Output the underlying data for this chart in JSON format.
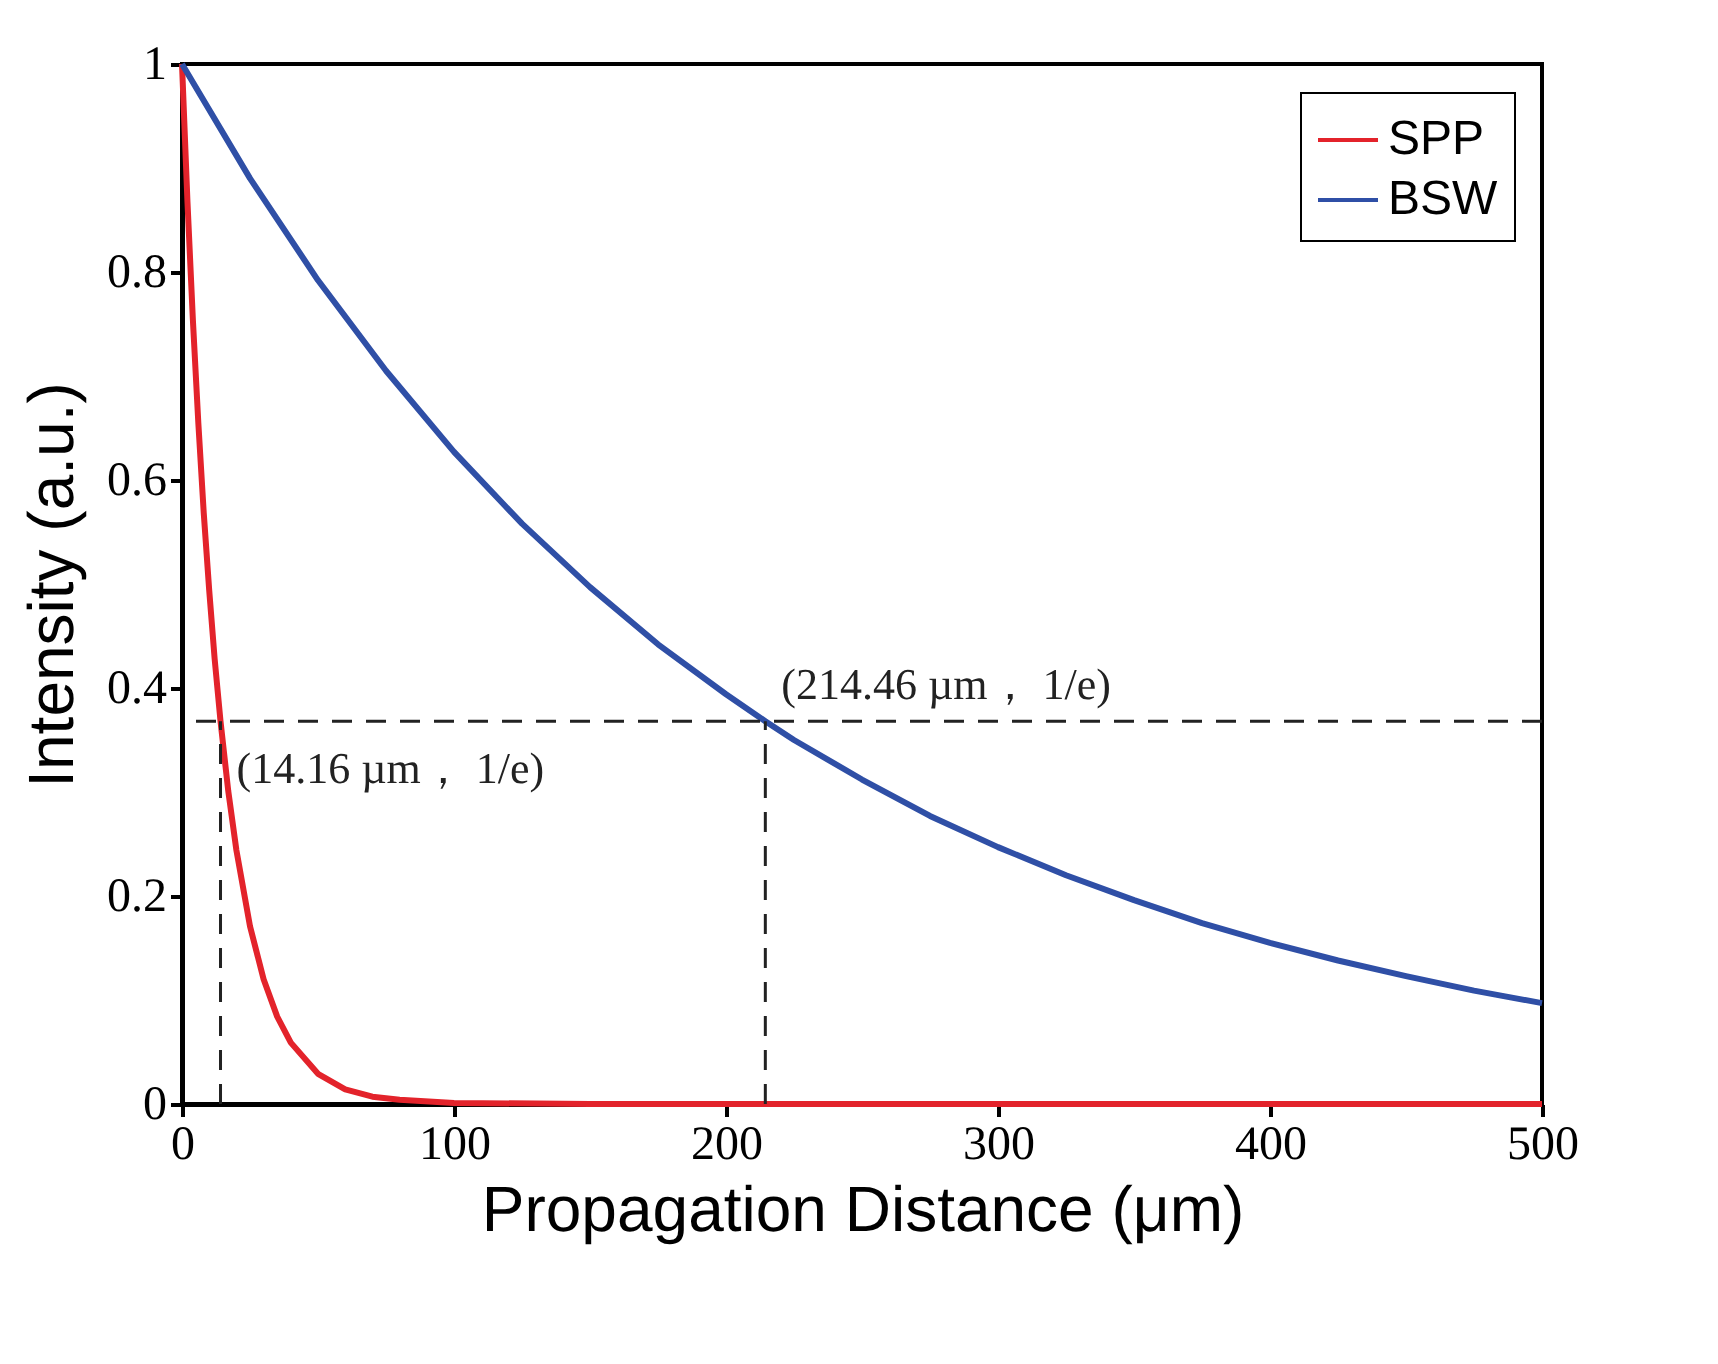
{
  "chart_data": {
    "type": "line",
    "xlabel": "Propagation Distance (μm)",
    "ylabel": "Intensity (a.u.)",
    "xlim": [
      0,
      500
    ],
    "xticks": [
      0,
      100,
      200,
      300,
      400,
      500
    ],
    "ylim": [
      0,
      1
    ],
    "yticks": [
      0,
      0.2,
      0.4,
      0.6,
      0.8,
      1
    ],
    "legend": "top right",
    "series": [
      {
        "name": "SPP",
        "color": "#e3232b",
        "x": [
          0,
          2,
          4,
          6,
          8,
          10,
          12,
          14.16,
          17,
          20,
          25,
          30,
          35,
          40,
          50,
          60,
          70,
          80,
          100,
          150,
          200,
          300,
          400,
          500
        ],
        "values": [
          1,
          0.868,
          0.754,
          0.655,
          0.568,
          0.494,
          0.428,
          0.368,
          0.301,
          0.244,
          0.171,
          0.12,
          0.084,
          0.059,
          0.029,
          0.014,
          0.007,
          0.004,
          0.001,
          0,
          0,
          0,
          0,
          0
        ]
      },
      {
        "name": "BSW",
        "color": "#2f4fa6",
        "x": [
          0,
          25,
          50,
          75,
          100,
          125,
          150,
          175,
          200,
          214.46,
          225,
          250,
          275,
          300,
          325,
          350,
          375,
          400,
          425,
          450,
          475,
          500
        ],
        "values": [
          1,
          0.89,
          0.792,
          0.705,
          0.627,
          0.558,
          0.497,
          0.442,
          0.394,
          0.368,
          0.35,
          0.312,
          0.277,
          0.247,
          0.22,
          0.196,
          0.174,
          0.155,
          0.138,
          0.123,
          0.109,
          0.097
        ]
      }
    ],
    "ref_lines": [
      {
        "axis": "y",
        "value": 0.368,
        "line_style": "dashed"
      },
      {
        "axis": "x",
        "value": 14.16,
        "line_style": "dashed"
      },
      {
        "axis": "x",
        "value": 214.46,
        "line_style": "dashed"
      }
    ],
    "annotations": [
      {
        "text": "(14.16 µm， 1/e)",
        "x": 14.16,
        "y": 0.368
      },
      {
        "text": "(214.46 µm， 1/e)",
        "x": 214.46,
        "y": 0.368
      }
    ]
  }
}
